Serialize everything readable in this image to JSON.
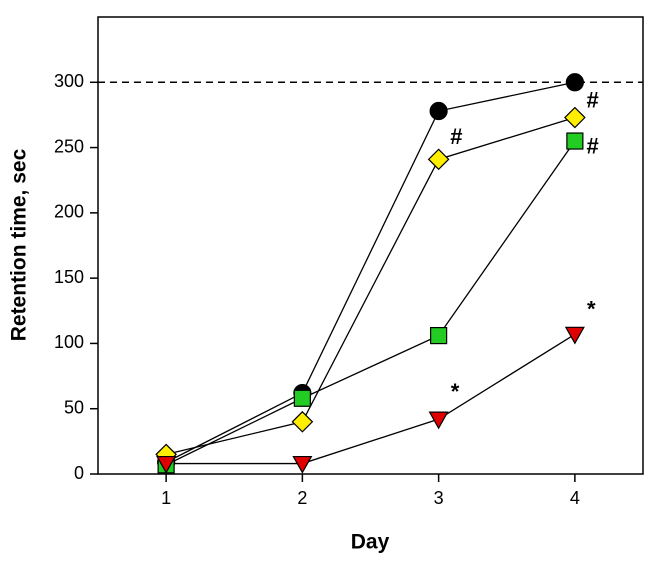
{
  "chart_data": {
    "type": "line",
    "xlabel": "Day",
    "ylabel": "Retention time, sec",
    "x": [
      1,
      2,
      3,
      4
    ],
    "xlim": [
      0.5,
      4.5
    ],
    "xticks": [
      1,
      2,
      3,
      4
    ],
    "ylim": [
      0,
      350
    ],
    "yticks": [
      0,
      50,
      100,
      150,
      200,
      250,
      300
    ],
    "reference_line": 300,
    "series": [
      {
        "marker": "circle",
        "color": "#000000",
        "values": [
          9,
          62,
          278,
          300
        ]
      },
      {
        "marker": "diamond",
        "color": "#ffee00",
        "values": [
          15,
          40,
          241,
          273
        ]
      },
      {
        "marker": "square",
        "color": "#22cc22",
        "values": [
          7,
          58,
          106,
          255
        ]
      },
      {
        "marker": "triangle-down",
        "color": "#e00000",
        "values": [
          8,
          8,
          42,
          107
        ]
      }
    ],
    "annotations": [
      {
        "text": "#",
        "x": 3.13,
        "y": 257
      },
      {
        "text": "#",
        "x": 4.13,
        "y": 285
      },
      {
        "text": "#",
        "x": 4.13,
        "y": 250
      },
      {
        "text": "*",
        "x": 3.12,
        "y": 62
      },
      {
        "text": "*",
        "x": 4.12,
        "y": 125
      }
    ]
  }
}
